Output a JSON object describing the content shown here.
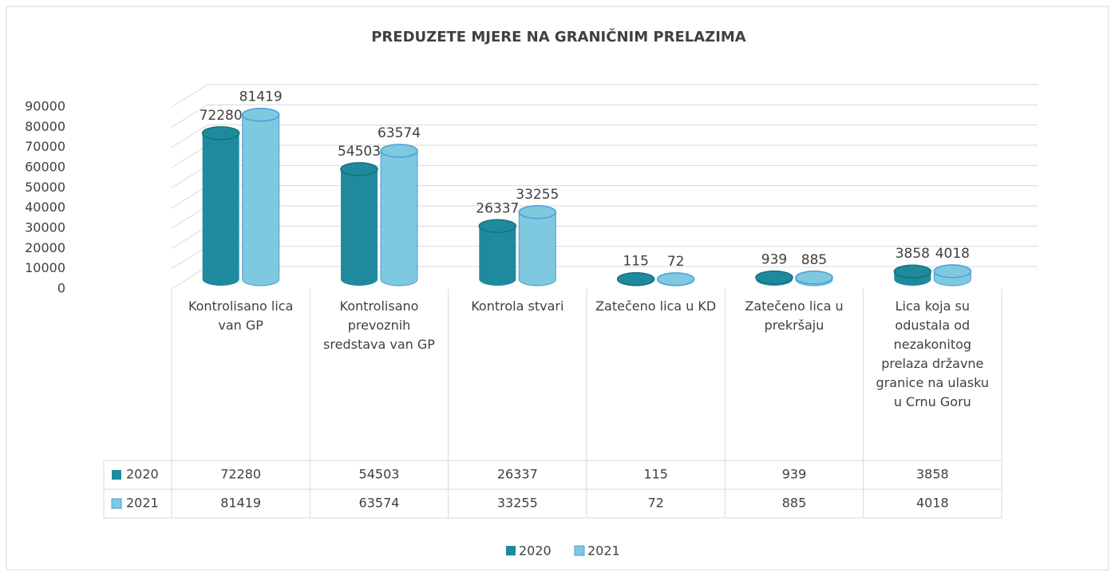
{
  "chart_data": {
    "type": "bar3d",
    "title": "PREDUZETE MJERE NA GRANIČNIM PRELAZIMA",
    "categories": [
      "Kontrolisano lica van GP",
      "Kontrolisano prevoznih sredstava van GP",
      "Kontrola stvari",
      "Zatečeno lica u KD",
      "Zatečeno lica u prekršaju",
      "Lica koja su odustala od nezakonitog prelaza državne granice na ulasku u Crnu Goru"
    ],
    "series": [
      {
        "name": "2020",
        "color": "#1f8a9e",
        "values": [
          72280,
          54503,
          26337,
          115,
          939,
          3858
        ]
      },
      {
        "name": "2021",
        "color": "#7ec8e0",
        "values": [
          81419,
          63574,
          33255,
          72,
          885,
          4018
        ]
      }
    ],
    "ylim": [
      0,
      90000
    ],
    "yticks": [
      0,
      10000,
      20000,
      30000,
      40000,
      50000,
      60000,
      70000,
      80000,
      90000
    ],
    "grid": true,
    "legend": "bottom",
    "data_table": true
  }
}
